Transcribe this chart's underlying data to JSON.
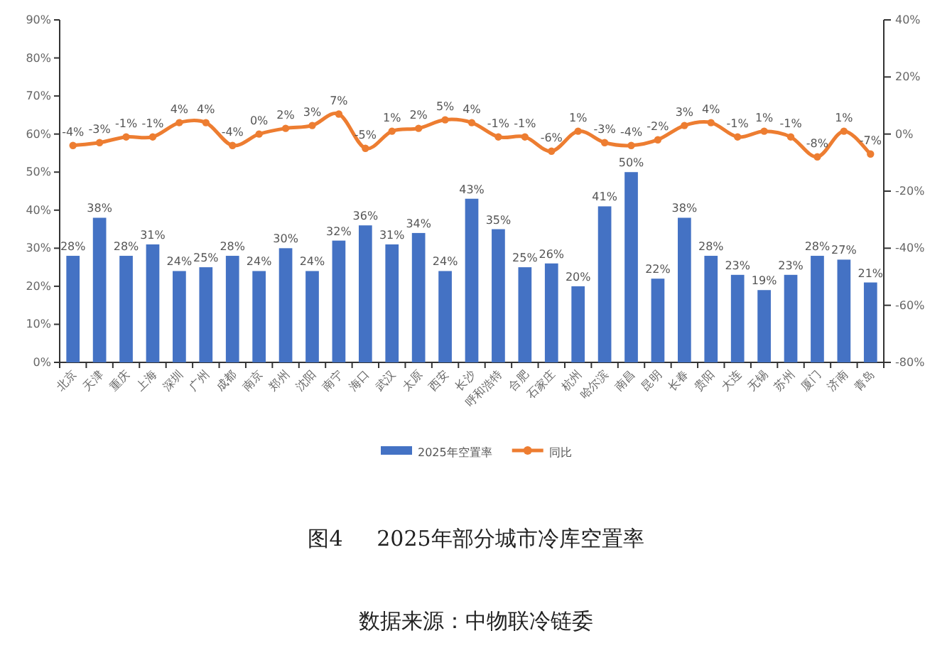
{
  "chart_data": {
    "type": "bar",
    "title": "图4     2025年部分城市冷库空置率",
    "annotations": [
      "数据来源：中物联冷链委"
    ],
    "categories": [
      "北京",
      "天津",
      "重庆",
      "上海",
      "深圳",
      "广州",
      "成都",
      "南京",
      "郑州",
      "沈阳",
      "南宁",
      "海口",
      "武汉",
      "太原",
      "西安",
      "长沙",
      "呼和浩特",
      "合肥",
      "石家庄",
      "杭州",
      "哈尔滨",
      "南昌",
      "昆明",
      "长春",
      "贵阳",
      "大连",
      "无锡",
      "苏州",
      "厦门",
      "济南",
      "青岛"
    ],
    "series": [
      {
        "name": "2025年空置率",
        "color": "#4472c4",
        "values": [
          28,
          38,
          28,
          31,
          24,
          25,
          28,
          24,
          30,
          24,
          32,
          36,
          31,
          34,
          24,
          43,
          35,
          25,
          26,
          20,
          41,
          50,
          22,
          38,
          28,
          23,
          19,
          23,
          28,
          27,
          21
        ],
        "value_labels": [
          "28%",
          "38%",
          "28%",
          "31%",
          "24%",
          "25%",
          "28%",
          "24%",
          "30%",
          "24%",
          "32%",
          "36%",
          "31%",
          "34%",
          "24%",
          "43%",
          "35%",
          "25%",
          "26%",
          "20%",
          "41%",
          "50%",
          "22%",
          "38%",
          "28%",
          "23%",
          "19%",
          "23%",
          "28%",
          "27%",
          "21%"
        ]
      },
      {
        "name": "同比",
        "type": "line",
        "axis": "y2",
        "color": "#ed7d31",
        "marker": "circle",
        "values": [
          -4,
          -3,
          -1,
          -1,
          4,
          4,
          -4,
          0,
          2,
          3,
          7,
          -5,
          1,
          2,
          5,
          4,
          -1,
          -1,
          -6,
          1,
          -3,
          -4,
          -2,
          3,
          4,
          -1,
          1,
          -1,
          -8,
          1,
          -7
        ],
        "value_labels": [
          "-4%",
          "-3%",
          "-1%",
          "-1%",
          "4%",
          "4%",
          "-4%",
          "0%",
          "2%",
          "3%",
          "7%",
          "-5%",
          "1%",
          "2%",
          "5%",
          "4%",
          "-1%",
          "-1%",
          "-6%",
          "1%",
          "-3%",
          "-4%",
          "-2%",
          "3%",
          "4%",
          "-1%",
          "1%",
          "-1%",
          "-8%",
          "1%",
          "-7%"
        ]
      }
    ],
    "ylim": [
      0,
      90
    ],
    "yticks": [
      {
        "value": 0,
        "label": "0%"
      },
      {
        "value": 10,
        "label": "10%"
      },
      {
        "value": 20,
        "label": "20%"
      },
      {
        "value": 30,
        "label": "30%"
      },
      {
        "value": 40,
        "label": "40%"
      },
      {
        "value": 50,
        "label": "50%"
      },
      {
        "value": 60,
        "label": "60%"
      },
      {
        "value": 70,
        "label": "70%"
      },
      {
        "value": 80,
        "label": "80%"
      },
      {
        "value": 90,
        "label": "90%"
      }
    ],
    "y2lim": [
      -80,
      40
    ],
    "y2ticks": [
      {
        "value": -80,
        "label": "-80%"
      },
      {
        "value": -60,
        "label": "-60%"
      },
      {
        "value": -40,
        "label": "-40%"
      },
      {
        "value": -20,
        "label": "-20%"
      },
      {
        "value": 0,
        "label": "0%"
      },
      {
        "value": 20,
        "label": "20%"
      },
      {
        "value": 40,
        "label": "40%"
      }
    ],
    "legend": "bottom"
  }
}
